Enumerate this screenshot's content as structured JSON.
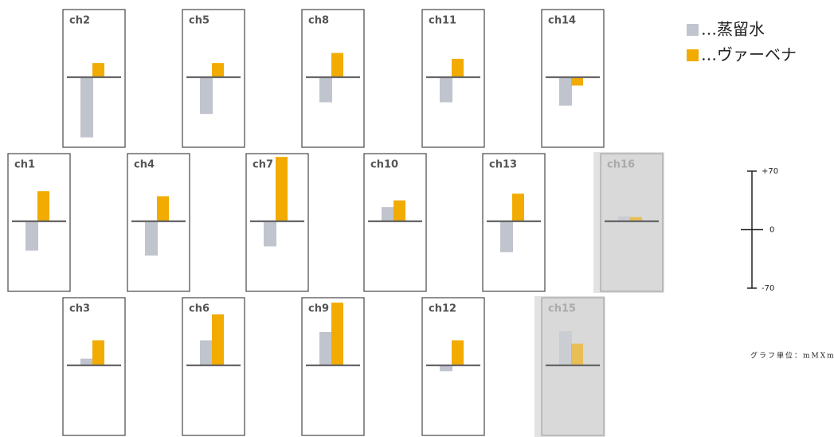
{
  "chart_data": {
    "type": "bar",
    "series": [
      {
        "name": "…蒸留水",
        "color": "#c0c4cd"
      },
      {
        "name": "…ヴァーベナ",
        "color": "#f2ab00"
      }
    ],
    "panels": [
      {
        "label": "ch2",
        "values": [
          -72,
          17
        ]
      },
      {
        "label": "ch5",
        "values": [
          -44,
          17
        ]
      },
      {
        "label": "ch8",
        "values": [
          -30,
          29
        ]
      },
      {
        "label": "ch11",
        "values": [
          -30,
          22
        ]
      },
      {
        "label": "ch14",
        "values": [
          -34,
          -10
        ]
      },
      {
        "label": "ch1",
        "values": [
          -35,
          36
        ]
      },
      {
        "label": "ch4",
        "values": [
          -41,
          30
        ]
      },
      {
        "label": "ch7",
        "values": [
          -30,
          77
        ]
      },
      {
        "label": "ch10",
        "values": [
          17,
          25
        ]
      },
      {
        "label": "ch13",
        "values": [
          -37,
          33
        ]
      },
      {
        "label": "ch16",
        "values": [
          6,
          5
        ],
        "inactive": true
      },
      {
        "label": "ch3",
        "values": [
          8,
          30
        ]
      },
      {
        "label": "ch6",
        "values": [
          30,
          61
        ]
      },
      {
        "label": "ch9",
        "values": [
          40,
          75
        ]
      },
      {
        "label": "ch12",
        "values": [
          -7,
          30
        ]
      },
      {
        "label": "ch15",
        "values": [
          41,
          26
        ],
        "inactive": true
      }
    ],
    "ylim": [
      -70,
      70
    ],
    "yticks": [
      {
        "value": 70,
        "label": "+70"
      },
      0,
      -70
    ],
    "unit_label": "グラフ単位：mMXmm"
  }
}
